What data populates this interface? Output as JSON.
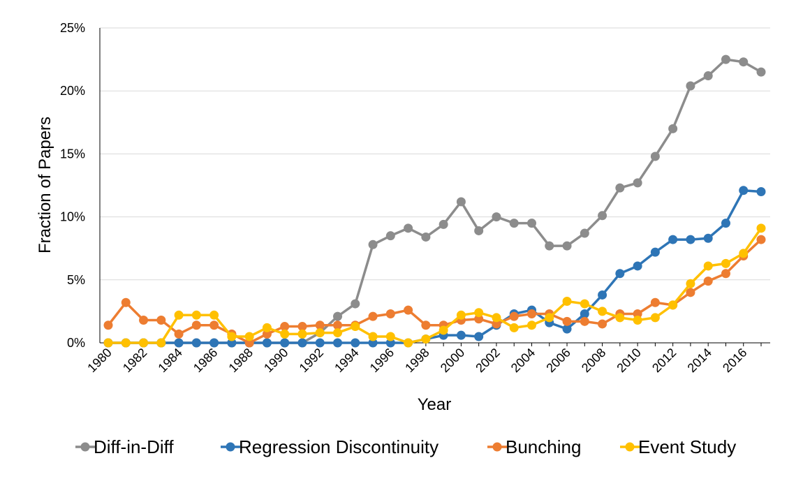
{
  "chart_data": {
    "type": "line",
    "title": "",
    "xlabel": "Year",
    "ylabel": "Fraction of Papers",
    "x": [
      1980,
      1981,
      1982,
      1983,
      1984,
      1985,
      1986,
      1987,
      1988,
      1989,
      1990,
      1991,
      1992,
      1993,
      1994,
      1995,
      1996,
      1997,
      1998,
      1999,
      2000,
      2001,
      2002,
      2003,
      2004,
      2005,
      2006,
      2007,
      2008,
      2009,
      2010,
      2011,
      2012,
      2013,
      2014,
      2015,
      2016,
      2017
    ],
    "x_tick_labels": [
      "1980",
      "1982",
      "1984",
      "1986",
      "1988",
      "1990",
      "1992",
      "1994",
      "1996",
      "1998",
      "2000",
      "2002",
      "2004",
      "2006",
      "2008",
      "2010",
      "2012",
      "2014",
      "2016"
    ],
    "y_tick_labels": [
      "0%",
      "5%",
      "10%",
      "15%",
      "20%",
      "25%"
    ],
    "ylim": [
      0,
      25
    ],
    "y_unit": "%",
    "grid": "horizontal",
    "legend_position": "bottom",
    "series": [
      {
        "name": "Diff-in-Diff",
        "color": "#8c8c8c",
        "values": [
          0,
          0,
          0,
          0,
          0,
          0,
          0,
          0,
          0,
          0,
          0,
          0,
          0.8,
          2.1,
          3.1,
          7.8,
          8.5,
          9.1,
          8.4,
          9.4,
          11.2,
          8.9,
          10.0,
          9.5,
          9.5,
          7.7,
          7.7,
          8.7,
          10.1,
          12.3,
          12.7,
          14.8,
          17.0,
          20.4,
          21.2,
          22.5,
          22.3,
          21.5
        ]
      },
      {
        "name": "Regression Discontinuity",
        "color": "#2e75b6",
        "values": [
          0,
          0,
          0,
          0,
          0,
          0,
          0,
          0,
          0,
          0,
          0,
          0,
          0,
          0,
          0,
          0,
          0,
          0,
          0.3,
          0.6,
          0.6,
          0.5,
          1.4,
          2.3,
          2.6,
          1.6,
          1.1,
          2.3,
          3.8,
          5.5,
          6.1,
          7.2,
          8.2,
          8.2,
          8.3,
          9.5,
          12.1,
          12.0
        ]
      },
      {
        "name": "Bunching",
        "color": "#ed7d31",
        "values": [
          1.4,
          3.2,
          1.8,
          1.8,
          0.7,
          1.4,
          1.4,
          0.7,
          0,
          0.7,
          1.3,
          1.3,
          1.4,
          1.4,
          1.4,
          2.1,
          2.3,
          2.6,
          1.4,
          1.4,
          1.8,
          1.9,
          1.5,
          2.1,
          2.3,
          2.3,
          1.7,
          1.7,
          1.5,
          2.3,
          2.3,
          3.2,
          3.0,
          4.0,
          4.9,
          5.5,
          6.9,
          8.2
        ]
      },
      {
        "name": "Event Study",
        "color": "#ffc000",
        "values": [
          0,
          0,
          0,
          0,
          2.2,
          2.2,
          2.2,
          0.5,
          0.5,
          1.2,
          0.7,
          0.7,
          0.8,
          0.8,
          1.3,
          0.5,
          0.5,
          0,
          0.3,
          1.0,
          2.2,
          2.4,
          2.0,
          1.2,
          1.4,
          2.0,
          3.3,
          3.1,
          2.5,
          2.0,
          1.8,
          2.0,
          3.0,
          4.7,
          6.1,
          6.3,
          7.1,
          9.1
        ]
      }
    ]
  }
}
